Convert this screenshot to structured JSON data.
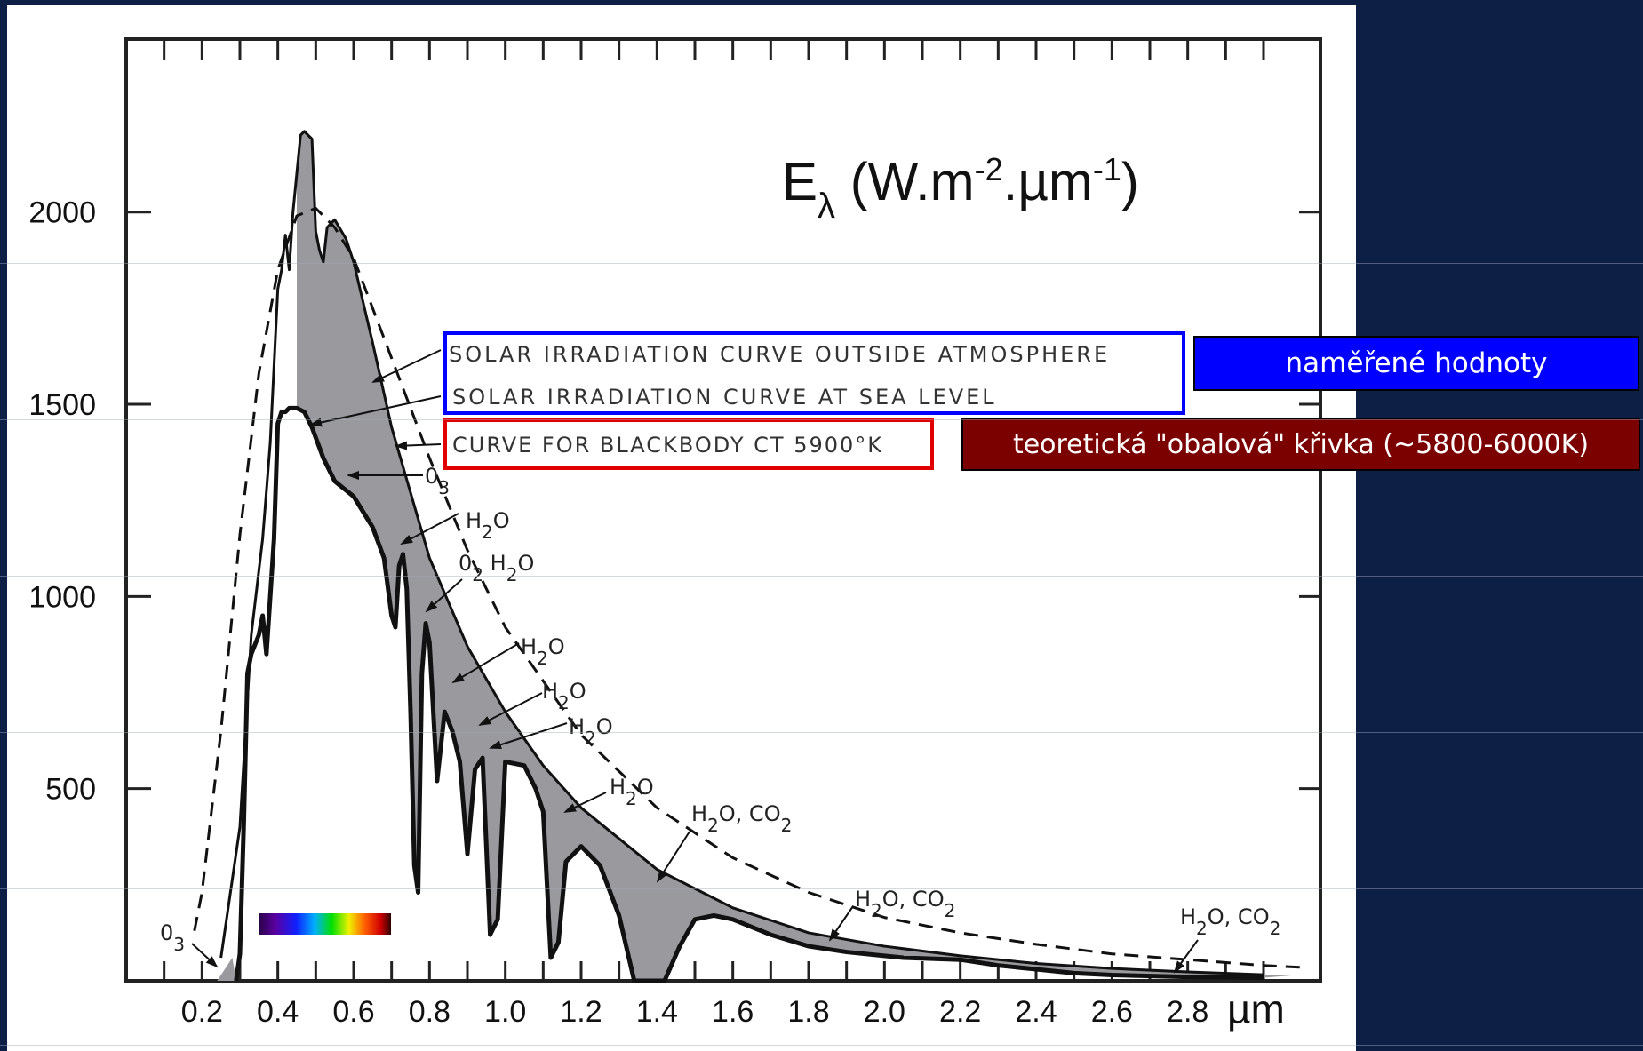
{
  "chart_data": {
    "type": "line",
    "title": "",
    "ylabel": "E",
    "ylabel_subscript": "λ",
    "ylabel_units": " (W.m",
    "ylabel_exp1": "-2",
    "ylabel_units2": ".µm",
    "ylabel_exp2": "-1",
    "ylabel_close": ")",
    "xlabel": "µm",
    "xlim": [
      0,
      3.15
    ],
    "ylim": [
      0,
      2450
    ],
    "x_ticks": [
      0.2,
      0.4,
      0.6,
      0.8,
      1.0,
      1.2,
      1.4,
      1.6,
      1.8,
      2.0,
      2.2,
      2.4,
      2.6,
      2.8
    ],
    "x_tick_labels": [
      "0.2",
      "0.4",
      "0.6",
      "0.8",
      "1.0",
      "1.2",
      "1.4",
      "1.6",
      "1.8",
      "2.0",
      "2.2",
      "2.4",
      "2.6",
      "2.8"
    ],
    "y_ticks": [
      500,
      1000,
      1500,
      2000
    ],
    "y_tick_labels": [
      "500",
      "1000",
      "1500",
      "2000"
    ],
    "series": [
      {
        "name": "SOLAR IRRADIATION CURVE OUTSIDE ATMOSPHERE",
        "style": "solid-thin",
        "x": [
          0.25,
          0.3,
          0.33,
          0.36,
          0.38,
          0.4,
          0.41,
          0.42,
          0.43,
          0.44,
          0.45,
          0.46,
          0.47,
          0.48,
          0.49,
          0.5,
          0.51,
          0.52,
          0.53,
          0.55,
          0.58,
          0.6,
          0.65,
          0.7,
          0.75,
          0.8,
          0.9,
          1.0,
          1.1,
          1.2,
          1.4,
          1.6,
          1.8,
          2.0,
          2.2,
          2.4,
          2.6,
          2.8,
          3.0
        ],
        "y": [
          60,
          400,
          900,
          1150,
          1400,
          1800,
          1850,
          1940,
          1850,
          2000,
          2100,
          2200,
          2210,
          2200,
          2190,
          1950,
          1900,
          1870,
          1960,
          1980,
          1930,
          1870,
          1660,
          1440,
          1270,
          1100,
          870,
          700,
          560,
          450,
          290,
          190,
          125,
          90,
          65,
          45,
          32,
          23,
          16
        ]
      },
      {
        "name": "CURVE FOR BLACKBODY CT 5900°K",
        "style": "dashed",
        "x": [
          0.18,
          0.2,
          0.25,
          0.3,
          0.35,
          0.4,
          0.45,
          0.5,
          0.55,
          0.6,
          0.7,
          0.8,
          0.9,
          1.0,
          1.2,
          1.4,
          1.6,
          1.8,
          2.0,
          2.2,
          2.4,
          2.6,
          2.8,
          3.0,
          3.1
        ],
        "y": [
          130,
          230,
          650,
          1160,
          1580,
          1850,
          1990,
          2010,
          1960,
          1880,
          1620,
          1360,
          1120,
          920,
          640,
          450,
          320,
          230,
          165,
          125,
          95,
          70,
          55,
          40,
          35
        ]
      },
      {
        "name": "SOLAR IRRADIATION CURVE AT SEA LEVEL",
        "style": "solid-thick",
        "x": [
          0.29,
          0.3,
          0.31,
          0.32,
          0.33,
          0.35,
          0.36,
          0.37,
          0.38,
          0.39,
          0.4,
          0.41,
          0.42,
          0.43,
          0.45,
          0.47,
          0.49,
          0.52,
          0.55,
          0.6,
          0.65,
          0.68,
          0.7,
          0.71,
          0.72,
          0.73,
          0.74,
          0.75,
          0.76,
          0.77,
          0.78,
          0.79,
          0.8,
          0.82,
          0.84,
          0.86,
          0.88,
          0.9,
          0.92,
          0.94,
          0.96,
          0.98,
          1.0,
          1.05,
          1.08,
          1.1,
          1.12,
          1.14,
          1.16,
          1.2,
          1.25,
          1.3,
          1.34,
          1.38,
          1.42,
          1.46,
          1.5,
          1.55,
          1.6,
          1.7,
          1.8,
          1.9,
          2.0,
          2.05,
          2.2,
          2.3,
          2.4,
          2.5,
          2.6,
          2.8,
          3.0
        ],
        "y": [
          0,
          70,
          400,
          800,
          850,
          900,
          950,
          850,
          1000,
          1150,
          1450,
          1480,
          1480,
          1490,
          1490,
          1480,
          1440,
          1360,
          1300,
          1260,
          1180,
          1100,
          950,
          920,
          1080,
          1110,
          1020,
          700,
          300,
          230,
          800,
          930,
          880,
          520,
          700,
          650,
          570,
          330,
          550,
          580,
          120,
          160,
          570,
          560,
          500,
          440,
          60,
          100,
          310,
          350,
          300,
          170,
          0,
          0,
          0,
          90,
          160,
          170,
          160,
          120,
          90,
          75,
          65,
          60,
          55,
          40,
          30,
          20,
          15,
          10,
          8
        ]
      }
    ],
    "annotations": [
      {
        "text": "0",
        "sub": "3"
      },
      {
        "text": "H",
        "sub": "2",
        "tail": "O"
      },
      {
        "text": "0",
        "sub": "2",
        "tail": "  H",
        "sub2": "2",
        "tail2": "O"
      },
      {
        "text": "H",
        "sub": "2",
        "tail": "O"
      },
      {
        "text": "H",
        "sub": "2",
        "tail": "O"
      },
      {
        "text": "H",
        "sub": "2",
        "tail": "O"
      },
      {
        "text": "H",
        "sub": "2",
        "tail": "O"
      },
      {
        "text": "H",
        "sub": "2",
        "tail": "O, CO",
        "sub2": "2"
      },
      {
        "text": "H",
        "sub": "2",
        "tail": "O, CO",
        "sub2": "2"
      },
      {
        "text": "H",
        "sub": "2",
        "tail": "O, CO",
        "sub2": "2"
      },
      {
        "text": "0",
        "sub": "3"
      }
    ],
    "box_labels": {
      "blue_box": [
        "SOLAR  IRRADIATION  CURVE  OUTSIDE  ATMOSPHERE",
        "SOLAR  IRRADIATION  CURVE  AT  SEA LEVEL"
      ],
      "red_box": "CURVE FOR BLACKBODY CT 5900°K"
    },
    "grid": false,
    "legend": "none"
  },
  "callouts": {
    "measured": "naměřené hodnoty",
    "theoretical": "teoretická \"obalová\" křivka  (~5800-6000K)"
  },
  "colors": {
    "background": "#0d1f44",
    "blue_box": "#0000ff",
    "red_box": "#e00000",
    "measured_callout": "#0000ff",
    "theoretical_callout": "#7b0000",
    "absorption_fill": "#9a9a9e"
  }
}
